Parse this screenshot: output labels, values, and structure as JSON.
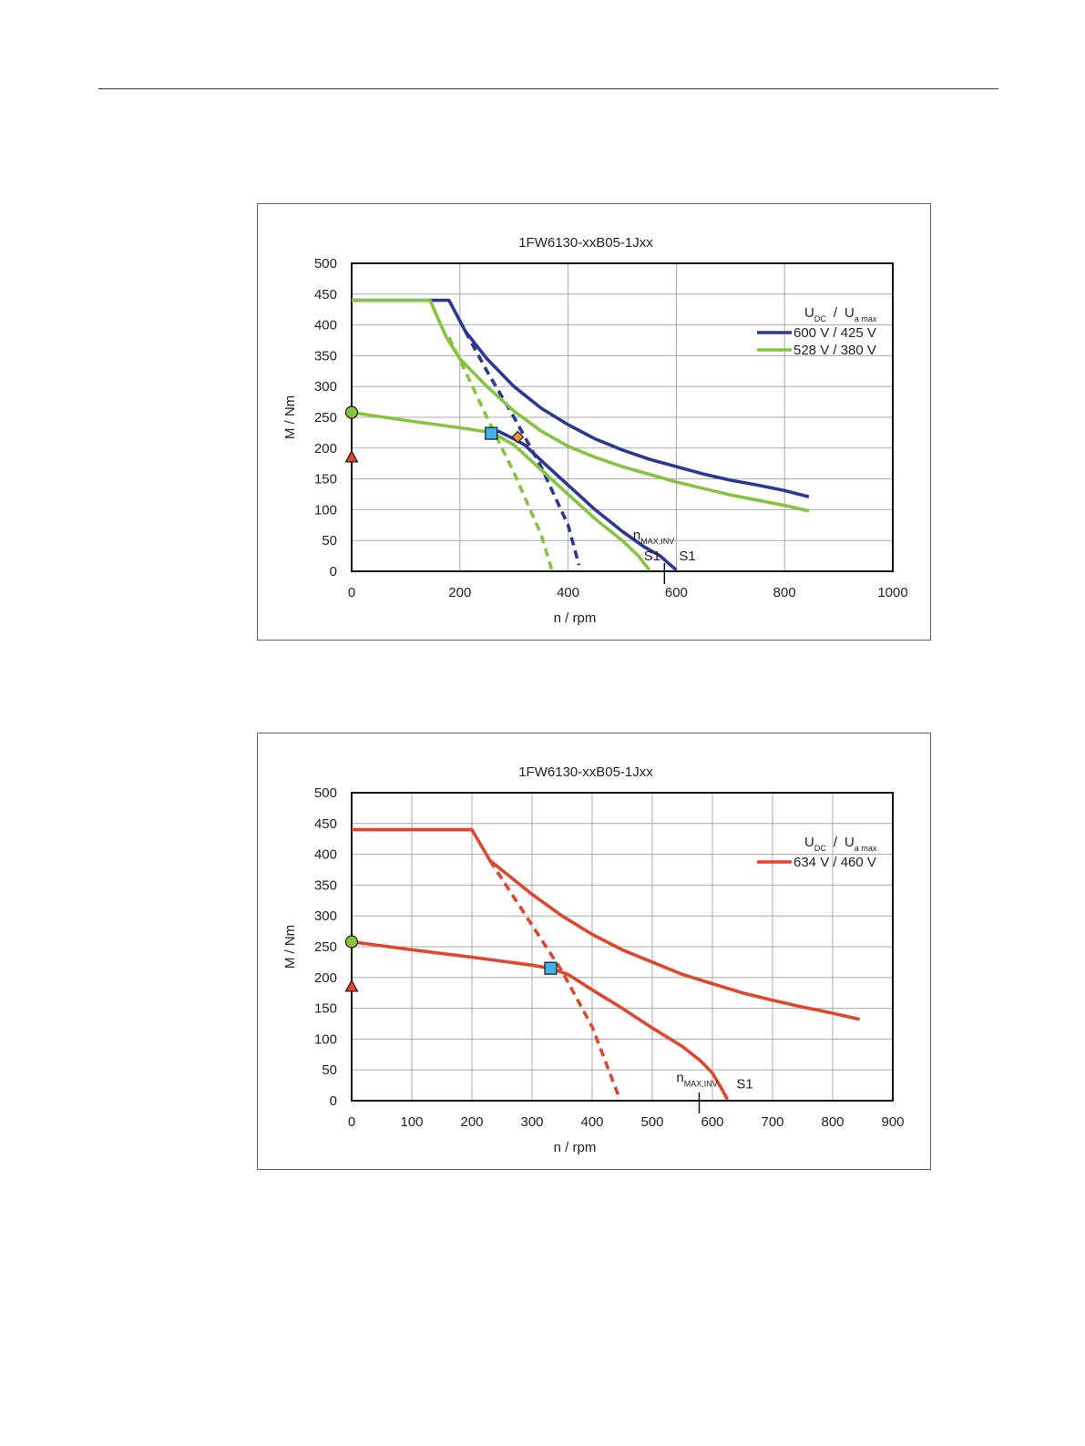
{
  "chart_data": [
    {
      "type": "line",
      "title": "1FW6130-xxB05-1Jxx",
      "xlabel": "n / rpm",
      "ylabel": "M / Nm",
      "xlim": [
        0,
        1000
      ],
      "ylim": [
        0,
        500
      ],
      "xticks": [
        0,
        200,
        400,
        600,
        800,
        1000
      ],
      "yticks": [
        0,
        50,
        100,
        150,
        200,
        250,
        300,
        350,
        400,
        450,
        500
      ],
      "grid": true,
      "legend_position": "top-right",
      "legend_header": {
        "u": "U",
        "u_sub": "DC",
        "sep": "/",
        "ua": "U",
        "ua_sub": "a max"
      },
      "colors": {
        "series_0": "#2a3894",
        "series_1": "#86c440"
      },
      "series": [
        {
          "name": "600 V / 425 V",
          "color": "#2a3894",
          "curves": [
            {
              "style": "solid",
              "points": [
                [
                  0,
                  440
                ],
                [
                  180,
                  440
                ],
                [
                  210,
                  390
                ],
                [
                  250,
                  345
                ],
                [
                  300,
                  300
                ],
                [
                  350,
                  265
                ],
                [
                  400,
                  238
                ],
                [
                  450,
                  215
                ],
                [
                  500,
                  197
                ],
                [
                  550,
                  182
                ],
                [
                  600,
                  170
                ],
                [
                  650,
                  158
                ],
                [
                  700,
                  148
                ],
                [
                  750,
                  140
                ],
                [
                  800,
                  131
                ],
                [
                  845,
                  121
                ]
              ]
            },
            {
              "style": "dashed",
              "points": [
                [
                  210,
                  390
                ],
                [
                  250,
                  325
                ],
                [
                  300,
                  250
                ],
                [
                  350,
                  170
                ],
                [
                  400,
                  75
                ],
                [
                  420,
                  10
                ]
              ]
            },
            {
              "style": "solid",
              "points": [
                [
                  270,
                  228
                ],
                [
                  300,
                  215
                ],
                [
                  320,
                  205
                ],
                [
                  350,
                  180
                ],
                [
                  400,
                  140
                ],
                [
                  450,
                  100
                ],
                [
                  500,
                  65
                ],
                [
                  540,
                  40
                ],
                [
                  570,
                  25
                ],
                [
                  600,
                  2
                ]
              ]
            }
          ]
        },
        {
          "name": "528 V / 380 V",
          "color": "#86c440",
          "curves": [
            {
              "style": "solid",
              "points": [
                [
                  0,
                  440
                ],
                [
                  145,
                  440
                ],
                [
                  175,
                  380
                ],
                [
                  200,
                  345
                ],
                [
                  250,
                  300
                ],
                [
                  300,
                  260
                ],
                [
                  350,
                  228
                ],
                [
                  400,
                  203
                ],
                [
                  450,
                  185
                ],
                [
                  500,
                  170
                ],
                [
                  600,
                  145
                ],
                [
                  700,
                  124
                ],
                [
                  800,
                  107
                ],
                [
                  845,
                  98
                ]
              ]
            },
            {
              "style": "dashed",
              "points": [
                [
                  180,
                  380
                ],
                [
                  210,
                  325
                ],
                [
                  250,
                  250
                ],
                [
                  300,
                  160
                ],
                [
                  350,
                  60
                ],
                [
                  370,
                  2
                ]
              ]
            },
            {
              "style": "solid",
              "points": [
                [
                  0,
                  258
                ],
                [
                  100,
                  245
                ],
                [
                  200,
                  233
                ],
                [
                  260,
                  225
                ],
                [
                  300,
                  205
                ],
                [
                  350,
                  165
                ],
                [
                  400,
                  125
                ],
                [
                  450,
                  85
                ],
                [
                  500,
                  50
                ],
                [
                  530,
                  25
                ],
                [
                  550,
                  2
                ]
              ]
            }
          ]
        }
      ],
      "markers": [
        {
          "name": "green-circle-marker",
          "shape": "circle",
          "color": "#86c440",
          "x": 0,
          "y": 258
        },
        {
          "name": "red-triangle-marker",
          "shape": "triangle",
          "color": "#e0452d",
          "x": 0,
          "y": 185
        },
        {
          "name": "cyan-square-marker",
          "shape": "square",
          "color": "#3fb3e6",
          "x": 258,
          "y": 224
        },
        {
          "name": "orange-diamond-marker",
          "shape": "diamond",
          "color": "#f0913a",
          "x": 307,
          "y": 218
        }
      ],
      "annotations": [
        {
          "name": "nmax-inv-label",
          "text": "n",
          "sub": "MAX,INV",
          "x": 520,
          "y": 52
        },
        {
          "name": "s1-green-label",
          "text": "S1",
          "x": 540,
          "y": 18
        },
        {
          "name": "s1-blue-label",
          "text": "S1",
          "x": 605,
          "y": 18
        },
        {
          "name": "nmax-inv-tick",
          "text": "",
          "x": 578,
          "y": 0
        }
      ]
    },
    {
      "type": "line",
      "title": "1FW6130-xxB05-1Jxx",
      "xlabel": "n / rpm",
      "ylabel": "M / Nm",
      "xlim": [
        0,
        900
      ],
      "ylim": [
        0,
        500
      ],
      "xticks": [
        0,
        100,
        200,
        300,
        400,
        500,
        600,
        700,
        800,
        900
      ],
      "yticks": [
        0,
        50,
        100,
        150,
        200,
        250,
        300,
        350,
        400,
        450,
        500
      ],
      "grid": true,
      "legend_position": "top-right",
      "legend_header": {
        "u": "U",
        "u_sub": "DC",
        "sep": "/",
        "ua": "U",
        "ua_sub": "a max"
      },
      "colors": {
        "series_0": "#e0452d"
      },
      "series": [
        {
          "name": "634 V / 460 V",
          "color": "#e0452d",
          "curves": [
            {
              "style": "solid",
              "points": [
                [
                  0,
                  440
                ],
                [
                  200,
                  440
                ],
                [
                  230,
                  390
                ],
                [
                  300,
                  335
                ],
                [
                  350,
                  300
                ],
                [
                  400,
                  270
                ],
                [
                  450,
                  245
                ],
                [
                  500,
                  225
                ],
                [
                  550,
                  205
                ],
                [
                  600,
                  190
                ],
                [
                  650,
                  175
                ],
                [
                  700,
                  163
                ],
                [
                  750,
                  152
                ],
                [
                  800,
                  142
                ],
                [
                  845,
                  132
                ]
              ]
            },
            {
              "style": "dashed",
              "points": [
                [
                  230,
                  390
                ],
                [
                  300,
                  285
                ],
                [
                  350,
                  210
                ],
                [
                  400,
                  120
                ],
                [
                  445,
                  5
                ]
              ]
            },
            {
              "style": "solid",
              "points": [
                [
                  0,
                  258
                ],
                [
                  100,
                  245
                ],
                [
                  200,
                  233
                ],
                [
                  300,
                  220
                ],
                [
                  330,
                  215
                ],
                [
                  360,
                  205
                ],
                [
                  400,
                  180
                ],
                [
                  450,
                  150
                ],
                [
                  500,
                  118
                ],
                [
                  550,
                  88
                ],
                [
                  580,
                  65
                ],
                [
                  600,
                  45
                ],
                [
                  615,
                  20
                ],
                [
                  625,
                  2
                ]
              ]
            }
          ]
        }
      ],
      "markers": [
        {
          "name": "green-circle-marker",
          "shape": "circle",
          "color": "#86c440",
          "x": 0,
          "y": 258
        },
        {
          "name": "red-triangle-marker",
          "shape": "triangle",
          "color": "#e0452d",
          "x": 0,
          "y": 185
        },
        {
          "name": "cyan-square-marker",
          "shape": "square",
          "color": "#3fb3e6",
          "x": 331,
          "y": 215
        }
      ],
      "annotations": [
        {
          "name": "nmax-inv-label",
          "text": "n",
          "sub": "MAX,INV",
          "x": 540,
          "y": 30
        },
        {
          "name": "s1-red-label",
          "text": "S1",
          "x": 640,
          "y": 20
        },
        {
          "name": "nmax-inv-tick",
          "text": "",
          "x": 578,
          "y": 0
        }
      ]
    }
  ]
}
